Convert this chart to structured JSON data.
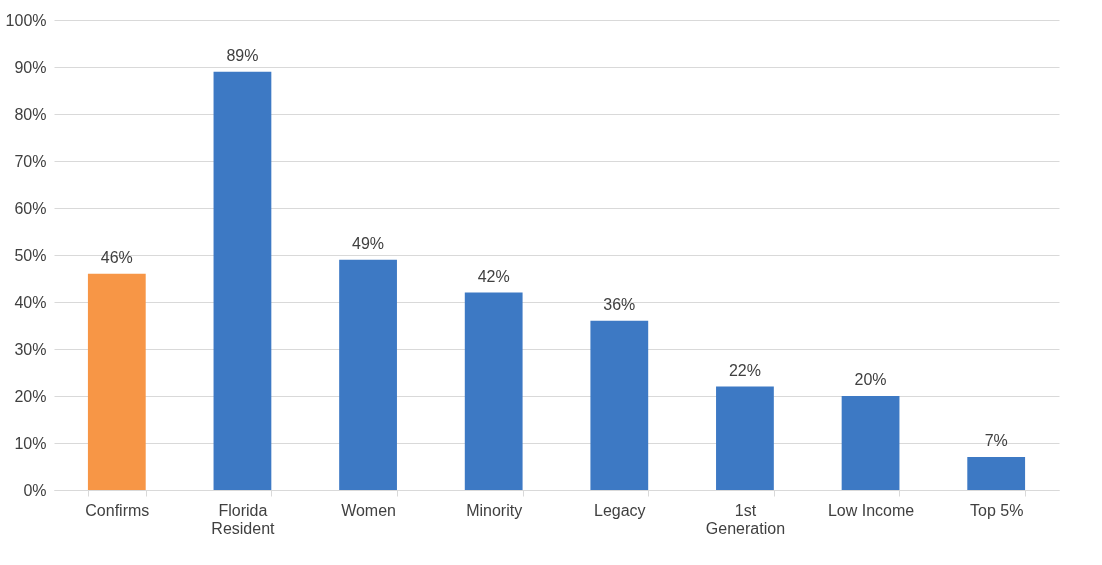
{
  "chart_data": {
    "type": "bar",
    "categories": [
      "Confirms",
      "Florida Resident",
      "Women",
      "Minority",
      "Legacy",
      "1st Generation",
      "Low Income",
      "Top 5%"
    ],
    "values": [
      46,
      89,
      49,
      42,
      36,
      22,
      20,
      7
    ],
    "colors": [
      "#f79646",
      "#3d79c4",
      "#3d79c4",
      "#3d79c4",
      "#3d79c4",
      "#3d79c4",
      "#3d79c4",
      "#3d79c4"
    ],
    "value_labels": [
      "46%",
      "89%",
      "49%",
      "42%",
      "36%",
      "22%",
      "20%",
      "7%"
    ],
    "ylim": [
      0,
      100
    ],
    "yticks": [
      {
        "value": 0,
        "label": "0%"
      },
      {
        "value": 10,
        "label": "10%"
      },
      {
        "value": 20,
        "label": "20%"
      },
      {
        "value": 30,
        "label": "30%"
      },
      {
        "value": 40,
        "label": "40%"
      },
      {
        "value": 50,
        "label": "50%"
      },
      {
        "value": 60,
        "label": "60%"
      },
      {
        "value": 70,
        "label": "70%"
      },
      {
        "value": 80,
        "label": "80%"
      },
      {
        "value": 90,
        "label": "90%"
      },
      {
        "value": 100,
        "label": "100%"
      }
    ],
    "grid": "y"
  }
}
